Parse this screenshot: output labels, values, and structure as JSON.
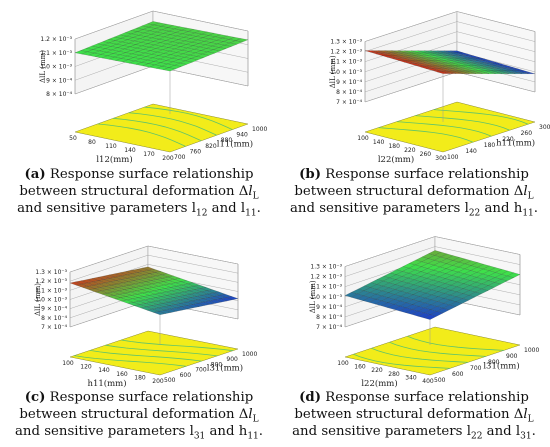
{
  "chart_data": [
    {
      "type": "surface3d",
      "panel": "a",
      "zlabel": "ΔlL (mm)",
      "xlabel": "l12(mm)",
      "ylabel": "l11(mm)",
      "z_ticks": [
        "8 × 10⁻⁴",
        "9 × 10⁻⁴",
        "1.0 × 10⁻³",
        "1.1 × 10⁻³",
        "1.2 × 10⁻³"
      ],
      "x_ticks": [
        "50",
        "80",
        "110",
        "140",
        "170",
        "200"
      ],
      "y_ticks": [
        "700",
        "760",
        "820",
        "880",
        "940",
        "1000"
      ],
      "caption_letter": "(a)",
      "caption_pre": "Response surface relationship between structural deformation Δ",
      "caption_mid": " and sensitive parameters ",
      "caption_p1": "l",
      "caption_p1_sub": "12",
      "caption_and": " and ",
      "caption_p2": "l",
      "caption_p2_sub": "11",
      "caption_end": "."
    },
    {
      "type": "surface3d",
      "panel": "b",
      "zlabel": "ΔlL (mm)",
      "xlabel": "l22(mm)",
      "ylabel": "h11(mm)",
      "z_ticks": [
        "7 × 10⁻⁴",
        "8 × 10⁻⁴",
        "9 × 10⁻⁴",
        "1.0 × 10⁻³",
        "1.1 × 10⁻³",
        "1.2 × 10⁻³",
        "1.3 × 10⁻³"
      ],
      "x_ticks": [
        "100",
        "140",
        "180",
        "220",
        "260",
        "300"
      ],
      "y_ticks": [
        "100",
        "140",
        "180",
        "220",
        "260",
        "300"
      ],
      "caption_letter": "(b)",
      "caption_pre": "Response surface relationship between structural deformation Δ",
      "caption_mid": " and sensitive parameters ",
      "caption_p1": "l",
      "caption_p1_sub": "22",
      "caption_and": " and ",
      "caption_p2": "h",
      "caption_p2_sub": "11",
      "caption_end": "."
    },
    {
      "type": "surface3d",
      "panel": "c",
      "zlabel": "ΔlL (mm)",
      "xlabel": "h11(mm)",
      "ylabel": "l31(mm)",
      "z_ticks": [
        "7 × 10⁻⁴",
        "8 × 10⁻⁴",
        "9 × 10⁻⁴",
        "1.0 × 10⁻³",
        "1.1 × 10⁻³",
        "1.2 × 10⁻³",
        "1.3 × 10⁻³"
      ],
      "x_ticks": [
        "100",
        "120",
        "140",
        "160",
        "180",
        "200"
      ],
      "y_ticks": [
        "500",
        "600",
        "700",
        "800",
        "900",
        "1000"
      ],
      "caption_letter": "(c)",
      "caption_pre": "Response surface relationship between structural deformation Δ",
      "caption_mid": " and sensitive parameters ",
      "caption_p1": "l",
      "caption_p1_sub": "31",
      "caption_and": " and ",
      "caption_p2": "h",
      "caption_p2_sub": "11",
      "caption_end": "."
    },
    {
      "type": "surface3d",
      "panel": "d",
      "zlabel": "ΔlL (mm)",
      "xlabel": "l22(mm)",
      "ylabel": "l31(mm)",
      "z_ticks": [
        "7 × 10⁻⁴",
        "8 × 10⁻⁴",
        "9 × 10⁻⁴",
        "1.0 × 10⁻³",
        "1.1 × 10⁻³",
        "1.2 × 10⁻³",
        "1.3 × 10⁻³"
      ],
      "x_ticks": [
        "100",
        "160",
        "220",
        "280",
        "340",
        "400"
      ],
      "y_ticks": [
        "500",
        "600",
        "700",
        "800",
        "900",
        "1000"
      ],
      "caption_letter": "(d)",
      "caption_pre": "Response surface relationship between structural deformation Δ",
      "caption_mid": " and sensitive parameters ",
      "caption_p1": "l",
      "caption_p1_sub": "22",
      "caption_and": " and ",
      "caption_p2": "l",
      "caption_p2_sub": "31",
      "caption_end": "."
    }
  ],
  "colors": {
    "contour_floor": "#f2ec1a",
    "contour_lines": "#5fc46a",
    "grid": "#9a9a9a",
    "surface_low": "#1a2bd6",
    "surface_mid": "#3ee04a",
    "surface_high": "#d62a18"
  }
}
